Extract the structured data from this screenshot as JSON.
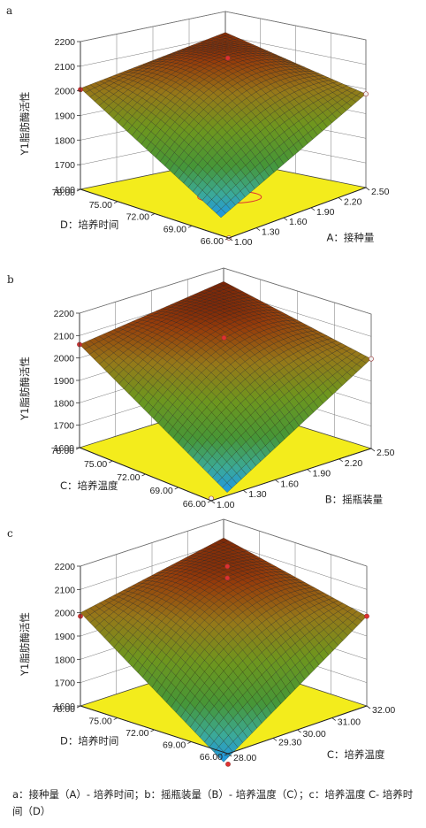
{
  "caption": "a：接种量（A）- 培养时间；b：摇瓶装量（B）- 培养温度（C）；c：培养温度 C- 培养时间（D）",
  "chart_data": [
    {
      "panel": "a",
      "type": "surface3d",
      "zlabel": "Y1脂肪酶活性",
      "zticks": [
        "1600",
        "1700",
        "1800",
        "1900",
        "2000",
        "2100",
        "2200"
      ],
      "zlim": [
        1600,
        2200
      ],
      "right_axis": {
        "label": "A：接种量",
        "ticks": [
          "1.00",
          "1.30",
          "1.60",
          "1.90",
          "2.20",
          "2.50"
        ],
        "range": [
          1.0,
          2.5
        ]
      },
      "left_axis": {
        "label": "D：培养时间",
        "ticks": [
          "66.00",
          "69.00",
          "72.00",
          "75.00",
          "78.00"
        ],
        "range": [
          66.0,
          78.0
        ]
      },
      "corners": {
        "back": 2115,
        "left": 2010,
        "right": 1980,
        "front": 1600
      },
      "peak": 2140,
      "points": [
        {
          "name": "top",
          "z": 2150
        },
        {
          "name": "left",
          "z": 2005
        },
        {
          "name": "right",
          "z": 1980
        },
        {
          "name": "bottom",
          "z": 1600
        }
      ]
    },
    {
      "panel": "b",
      "type": "surface3d",
      "zlabel": "Y1脂肪酶活性",
      "zticks": [
        "1600",
        "1700",
        "1800",
        "1900",
        "2000",
        "2100",
        "2200"
      ],
      "zlim": [
        1600,
        2200
      ],
      "right_axis": {
        "label": "B：摇瓶装量",
        "ticks": [
          "1.00",
          "1.30",
          "1.60",
          "1.90",
          "2.20",
          "2.50"
        ],
        "range": [
          1.0,
          2.5
        ]
      },
      "left_axis": {
        "label": "C：培养温度",
        "ticks": [
          "66.00",
          "69.00",
          "72.00",
          "75.00",
          "78.00"
        ],
        "range": [
          66.0,
          78.0
        ]
      },
      "corners": {
        "back": 2140,
        "left": 2060,
        "right": 2000,
        "front": 1605
      },
      "peak": 2150,
      "points": [
        {
          "name": "top",
          "z": 2100
        },
        {
          "name": "left",
          "z": 2060
        },
        {
          "name": "right",
          "z": 2000
        },
        {
          "name": "bottom",
          "z": 1610
        }
      ]
    },
    {
      "panel": "c",
      "type": "surface3d",
      "zlabel": "Y1脂肪酶活性",
      "zticks": [
        "1600",
        "1700",
        "1800",
        "1900",
        "2000",
        "2100",
        "2200"
      ],
      "zlim": [
        1600,
        2200
      ],
      "right_axis": {
        "label": "C：培养温度",
        "ticks": [
          "28.00",
          "29.30",
          "30.00",
          "31.00",
          "32.00"
        ],
        "range": [
          28.0,
          32.0
        ]
      },
      "left_axis": {
        "label": "D：培养时间",
        "ticks": [
          "66.00",
          "69.00",
          "72.00",
          "75.00",
          "78.00"
        ],
        "range": [
          66.0,
          78.0
        ]
      },
      "corners": {
        "back": 2120,
        "left": 2000,
        "right": 1985,
        "front": 1560
      },
      "peak": 2140,
      "points": [
        {
          "name": "top",
          "z": 2200
        },
        {
          "name": "top-2",
          "z": 2150
        },
        {
          "name": "left",
          "z": 1985
        },
        {
          "name": "right",
          "z": 1985
        },
        {
          "name": "bottom",
          "z": 1555
        }
      ]
    }
  ]
}
